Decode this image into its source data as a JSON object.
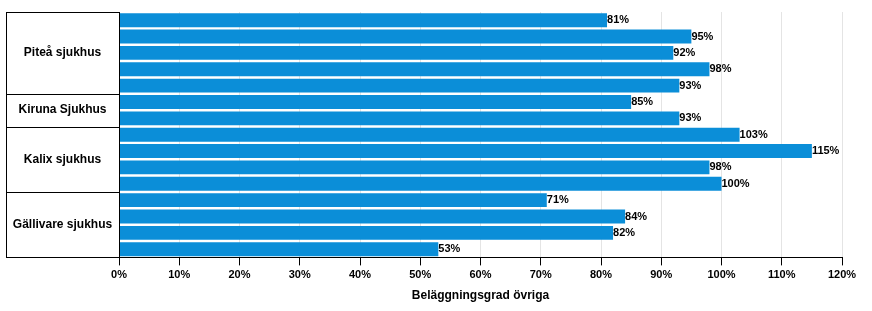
{
  "chart_data": {
    "type": "bar",
    "orientation": "horizontal",
    "x_label": "Beläggningsgrad övriga",
    "groups": [
      {
        "name": "Piteå sjukhus",
        "values": [
          81,
          95,
          92,
          98,
          93
        ],
        "value_labels": [
          "81%",
          "95%",
          "92%",
          "98%",
          "93%"
        ]
      },
      {
        "name": "Kiruna Sjukhus",
        "values": [
          85,
          93
        ],
        "value_labels": [
          "85%",
          "93%"
        ]
      },
      {
        "name": "Kalix sjukhus",
        "values": [
          103,
          115,
          98,
          100
        ],
        "value_labels": [
          "103%",
          "115%",
          "98%",
          "100%"
        ]
      },
      {
        "name": "Gällivare sjukhus",
        "values": [
          71,
          84,
          82,
          53
        ],
        "value_labels": [
          "71%",
          "84%",
          "82%",
          "53%"
        ]
      }
    ],
    "color": "#0b8ed8",
    "xlim": [
      0,
      120
    ],
    "xticks": [
      {
        "value": 0,
        "label": "0%"
      },
      {
        "value": 10,
        "label": "10%"
      },
      {
        "value": 20,
        "label": "20%"
      },
      {
        "value": 30,
        "label": "30%"
      },
      {
        "value": 40,
        "label": "40%"
      },
      {
        "value": 50,
        "label": "50%"
      },
      {
        "value": 60,
        "label": "60%"
      },
      {
        "value": 70,
        "label": "70%"
      },
      {
        "value": 80,
        "label": "80%"
      },
      {
        "value": 90,
        "label": "90%"
      },
      {
        "value": 100,
        "label": "100%"
      },
      {
        "value": 110,
        "label": "110%"
      },
      {
        "value": 120,
        "label": "120%"
      }
    ],
    "grid": true,
    "data_labels": true
  }
}
